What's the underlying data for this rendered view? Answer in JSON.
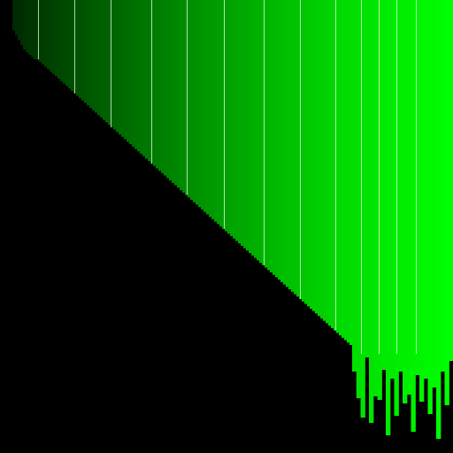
{
  "palette": {
    "background": "#000000",
    "gradient_start": "#002800",
    "gradient_end": "#00ff00",
    "separator": "#e6ffe6"
  },
  "bars": {
    "count": 128,
    "orientation": "vertical-top-anchored",
    "depth_fraction": [
      0.03,
      0.04,
      0.05,
      0.06,
      0.07,
      0.075,
      0.08,
      0.085,
      0.09,
      0.09,
      0.095,
      0.1,
      0.105,
      0.11,
      0.115,
      0.12,
      0.125,
      0.13,
      0.135,
      0.14,
      0.145,
      0.15,
      0.155,
      0.16,
      0.165,
      0.17,
      0.175,
      0.18,
      0.185,
      0.19,
      0.195,
      0.2,
      0.205,
      0.21,
      0.215,
      0.22,
      0.225,
      0.23,
      0.235,
      0.24,
      0.245,
      0.25,
      0.255,
      0.26,
      0.265,
      0.27,
      0.275,
      0.28,
      0.285,
      0.29,
      0.295,
      0.3,
      0.305,
      0.31,
      0.315,
      0.32,
      0.325,
      0.33,
      0.335,
      0.34,
      0.345,
      0.35,
      0.355,
      0.36,
      0.365,
      0.37,
      0.375,
      0.38,
      0.385,
      0.39,
      0.395,
      0.4,
      0.405,
      0.41,
      0.415,
      0.42,
      0.425,
      0.43,
      0.435,
      0.44,
      0.445,
      0.45,
      0.455,
      0.46,
      0.465,
      0.47,
      0.475,
      0.48,
      0.485,
      0.49,
      0.495,
      0.5,
      0.505,
      0.51,
      0.515,
      0.52,
      0.525,
      0.53,
      0.535,
      0.54,
      0.545,
      0.55,
      0.555,
      0.56,
      0.565,
      0.57,
      0.575,
      0.58,
      0.585,
      0.59,
      0.595,
      0.6,
      0.605,
      0.61,
      0.615,
      0.62,
      0.625,
      0.63,
      0.635,
      0.64,
      0.645,
      0.65,
      0.655,
      0.66,
      0.665,
      0.67,
      0.675,
      0.68
    ],
    "tail_spikes": [
      0.82,
      0.88,
      0.92,
      0.78,
      0.95,
      0.86,
      0.9,
      0.8,
      0.97,
      0.84,
      0.93,
      0.79,
      0.91,
      0.87,
      0.96,
      0.83,
      0.89,
      0.81,
      0.94,
      0.85,
      0.98,
      0.82,
      0.9,
      0.76
    ]
  }
}
